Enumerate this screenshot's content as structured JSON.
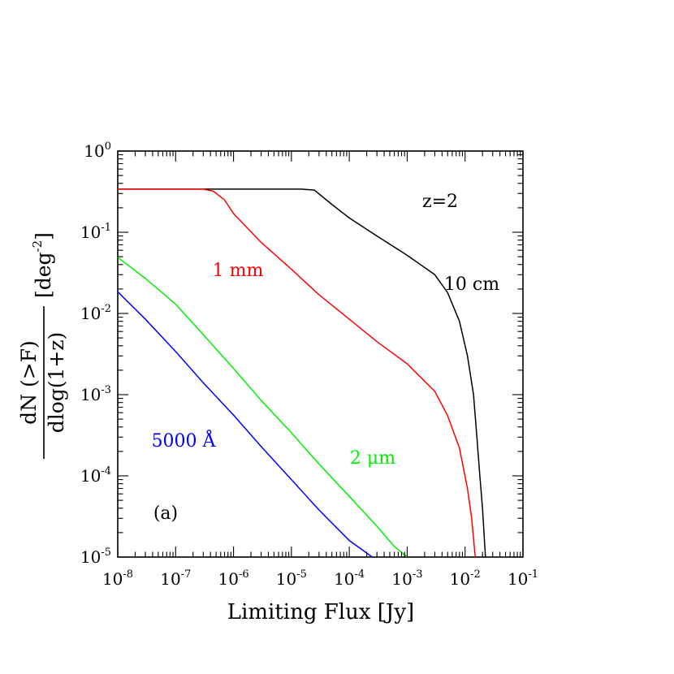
{
  "chart_data": {
    "type": "line",
    "x_scale": "log",
    "y_scale": "log",
    "xlim": [
      1e-08,
      0.1
    ],
    "ylim": [
      1e-05,
      1
    ],
    "x_tick_exponents": [
      "-8",
      "-7",
      "-6",
      "-5",
      "-4",
      "-3",
      "-2",
      "-1"
    ],
    "y_tick_exponents": [
      "-5",
      "-4",
      "-3",
      "-2",
      "-1",
      "0"
    ],
    "tick_base": "10",
    "xlabel": "Limiting Flux [Jy]",
    "ylabel": {
      "numerator": "dN (>F)",
      "denominator": "dlog(1+z)",
      "unit_prefix": "[deg",
      "unit_exponent": "-2",
      "unit_suffix": "]"
    },
    "annotations": {
      "redshift": "z=2",
      "panel": "(a)"
    },
    "grid": false,
    "series": [
      {
        "name": "10 cm",
        "color": "#000000",
        "points": [
          [
            1e-08,
            0.34
          ],
          [
            1e-06,
            0.34
          ],
          [
            1.5e-05,
            0.34
          ],
          [
            2.5e-05,
            0.33
          ],
          [
            5e-05,
            0.22
          ],
          [
            0.0001,
            0.15
          ],
          [
            0.0003,
            0.09
          ],
          [
            0.001,
            0.052
          ],
          [
            0.003,
            0.03
          ],
          [
            0.005,
            0.018
          ],
          [
            0.008,
            0.008
          ],
          [
            0.011,
            0.003
          ],
          [
            0.014,
            0.001
          ],
          [
            0.016,
            0.0003
          ],
          [
            0.018,
            0.0001
          ],
          [
            0.02,
            4e-05
          ],
          [
            0.0225,
            1e-05
          ]
        ]
      },
      {
        "name": "1 mm",
        "color": "#ff0000",
        "points": [
          [
            1e-08,
            0.34
          ],
          [
            3e-07,
            0.34
          ],
          [
            4.5e-07,
            0.32
          ],
          [
            7e-07,
            0.25
          ],
          [
            1e-06,
            0.17
          ],
          [
            3e-06,
            0.075
          ],
          [
            1e-05,
            0.035
          ],
          [
            3e-05,
            0.017
          ],
          [
            0.0001,
            0.0085
          ],
          [
            0.0003,
            0.0045
          ],
          [
            0.001,
            0.0024
          ],
          [
            0.003,
            0.0011
          ],
          [
            0.005,
            0.00055
          ],
          [
            0.008,
            0.00022
          ],
          [
            0.011,
            7e-05
          ],
          [
            0.013,
            3e-05
          ],
          [
            0.015,
            1e-05
          ]
        ]
      },
      {
        "name": "2 μm",
        "color": "#00ee00",
        "points": [
          [
            1e-08,
            0.049
          ],
          [
            3e-08,
            0.027
          ],
          [
            1e-07,
            0.013
          ],
          [
            3e-07,
            0.0055
          ],
          [
            1e-06,
            0.0021
          ],
          [
            3e-06,
            0.00085
          ],
          [
            1e-05,
            0.00034
          ],
          [
            3e-05,
            0.00014
          ],
          [
            0.0001,
            5.6e-05
          ],
          [
            0.0003,
            2.4e-05
          ],
          [
            0.0006,
            1.35e-05
          ],
          [
            0.001,
            1e-05
          ]
        ]
      },
      {
        "name": "5000 Å",
        "color": "#0000ff",
        "points": [
          [
            1e-08,
            0.0185
          ],
          [
            3e-08,
            0.0085
          ],
          [
            1e-07,
            0.0034
          ],
          [
            3e-07,
            0.0014
          ],
          [
            1e-06,
            0.00056
          ],
          [
            3e-06,
            0.00023
          ],
          [
            1e-05,
            9e-05
          ],
          [
            3e-05,
            3.8e-05
          ],
          [
            0.0001,
            1.6e-05
          ],
          [
            0.00025,
            1e-05
          ]
        ]
      }
    ],
    "series_labels": [
      {
        "text": "10 cm",
        "color": "#000000"
      },
      {
        "text": "1 mm",
        "color": "#ff0000"
      },
      {
        "text": "2 μm",
        "color": "#00ee00"
      },
      {
        "text": "5000 Å",
        "color": "#0000ff"
      }
    ]
  }
}
